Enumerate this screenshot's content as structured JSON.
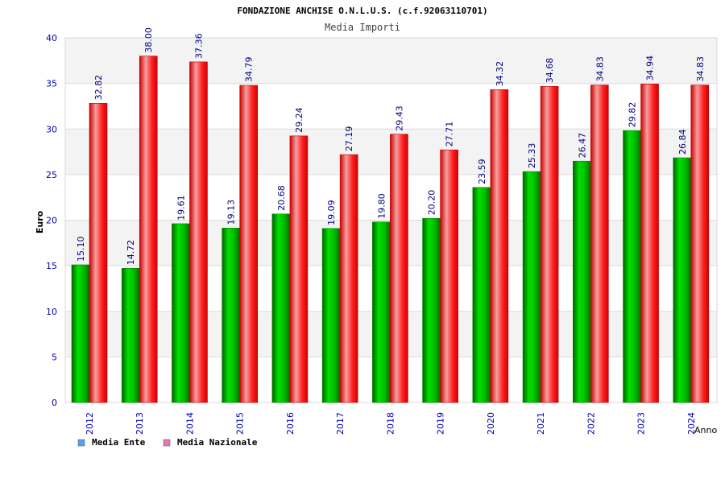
{
  "chart_data": {
    "type": "bar",
    "title": "FONDAZIONE ANCHISE O.N.L.U.S. (c.f.92063110701)",
    "subtitle": "Media Importi",
    "xlabel": "Anno",
    "ylabel": "Euro",
    "ylim": [
      0,
      40
    ],
    "yticks": [
      0,
      5,
      10,
      15,
      20,
      25,
      30,
      35,
      40
    ],
    "categories": [
      "2012",
      "2013",
      "2014",
      "2015",
      "2016",
      "2017",
      "2018",
      "2019",
      "2020",
      "2021",
      "2022",
      "2023",
      "2024"
    ],
    "series": [
      {
        "name": "Media Ente",
        "values": [
          15.1,
          14.72,
          19.61,
          19.13,
          20.68,
          19.09,
          19.8,
          20.2,
          23.59,
          25.33,
          26.47,
          29.82,
          26.84
        ],
        "labels": [
          "15.10",
          "14.72",
          "19.61",
          "19.13",
          "20.68",
          "19.09",
          "19.80",
          "20.20",
          "23.59",
          "25.33",
          "26.47",
          "29.82",
          "26.84"
        ],
        "color": "#00c000"
      },
      {
        "name": "Media Nazionale",
        "values": [
          32.82,
          38.0,
          37.36,
          34.79,
          29.24,
          27.19,
          29.43,
          27.71,
          34.32,
          34.68,
          34.83,
          34.94,
          34.83
        ],
        "labels": [
          "32.82",
          "38.00",
          "37.36",
          "34.79",
          "29.24",
          "27.19",
          "29.43",
          "27.71",
          "34.32",
          "34.68",
          "34.83",
          "34.94",
          "34.83"
        ],
        "color": "#ff1010"
      }
    ],
    "legend": {
      "position": "bottom-left",
      "items": [
        {
          "label": "Media Ente",
          "color": "#5aa0f0"
        },
        {
          "label": "Media Nazionale",
          "color": "#e878b0"
        }
      ]
    },
    "grid": true,
    "colors": {
      "title": "#000000",
      "subtitle": "#444444",
      "tick_labels": "#0000b0",
      "value_labels": "#000080",
      "band_light": "#f3f3f3",
      "band_white": "#ffffff"
    }
  }
}
